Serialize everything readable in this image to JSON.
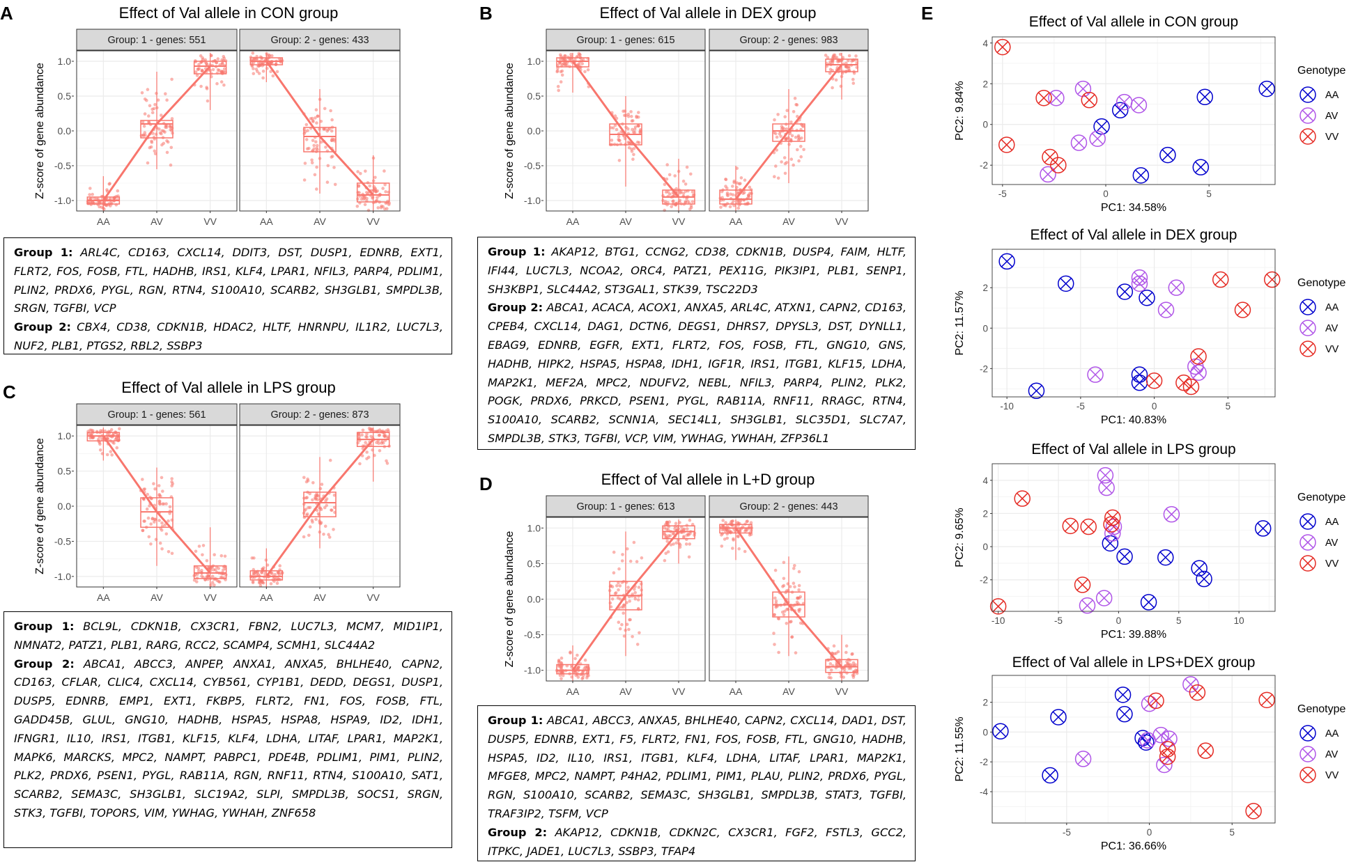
{
  "figure_letters": {
    "A": "A",
    "B": "B",
    "C": "C",
    "D": "D",
    "E": "E"
  },
  "colors": {
    "salmon": "#F8766D",
    "AA": "#0000CD",
    "AV": "#B055E8",
    "VV": "#E52B24",
    "strip": "#D9D9D9",
    "grid": "#EBEBEB"
  },
  "chart_data": [
    {
      "id": "A",
      "type": "box",
      "title": "Effect of Val allele in CON group",
      "ylabel": "Z-score of gene abundance",
      "ylim": [
        -1.15,
        1.15
      ],
      "yticks": [
        "1.0",
        "0.5",
        "0.0",
        "-0.5",
        "-1.0"
      ],
      "panels": [
        {
          "strip": "Group:  1 - genes: 551",
          "categories": [
            "AA",
            "AV",
            "VV"
          ],
          "medians": [
            -1.0,
            0.1,
            0.93
          ],
          "q1": [
            -1.05,
            -0.1,
            0.82
          ],
          "q3": [
            -0.95,
            0.15,
            1.0
          ],
          "whisker_low": [
            -1.15,
            -0.55,
            0.3
          ],
          "whisker_high": [
            -0.65,
            0.85,
            1.12
          ]
        },
        {
          "strip": "Group:  2 - genes: 433",
          "categories": [
            "AA",
            "AV",
            "VV"
          ],
          "medians": [
            1.0,
            -0.08,
            -0.92
          ],
          "q1": [
            0.95,
            -0.3,
            -1.02
          ],
          "q3": [
            1.05,
            0.05,
            -0.75
          ],
          "whisker_low": [
            0.7,
            -0.9,
            -1.15
          ],
          "whisker_high": [
            1.12,
            0.6,
            -0.35
          ]
        }
      ]
    },
    {
      "id": "B",
      "type": "box",
      "title": "Effect of Val allele in DEX group",
      "ylabel": "Z-score of gene abundance",
      "ylim": [
        -1.15,
        1.15
      ],
      "yticks": [
        "1.0",
        "0.5",
        "0.0",
        "-0.5",
        "-1.0"
      ],
      "panels": [
        {
          "strip": "Group:  1 - genes: 615",
          "categories": [
            "AA",
            "AV",
            "VV"
          ],
          "medians": [
            1.0,
            -0.05,
            -0.95
          ],
          "q1": [
            0.92,
            -0.2,
            -1.05
          ],
          "q3": [
            1.05,
            0.1,
            -0.85
          ],
          "whisker_low": [
            0.55,
            -0.8,
            -1.15
          ],
          "whisker_high": [
            1.12,
            0.5,
            -0.4
          ]
        },
        {
          "strip": "Group:  2 - genes: 983",
          "categories": [
            "AA",
            "AV",
            "VV"
          ],
          "medians": [
            -0.98,
            0.0,
            0.95
          ],
          "q1": [
            -1.05,
            -0.15,
            0.85
          ],
          "q3": [
            -0.85,
            0.1,
            1.03
          ],
          "whisker_low": [
            -1.15,
            -0.75,
            0.45
          ],
          "whisker_high": [
            -0.5,
            0.6,
            1.12
          ]
        }
      ]
    },
    {
      "id": "C",
      "type": "box",
      "title": "Effect of Val allele in LPS group",
      "ylabel": "Z-score of gene abundance",
      "ylim": [
        -1.15,
        1.15
      ],
      "yticks": [
        "1.0",
        "0.5",
        "0.0",
        "-0.5",
        "-1.0"
      ],
      "panels": [
        {
          "strip": "Group:  1 - genes: 561",
          "categories": [
            "AA",
            "AV",
            "VV"
          ],
          "medians": [
            1.0,
            -0.08,
            -0.95
          ],
          "q1": [
            0.93,
            -0.3,
            -1.03
          ],
          "q3": [
            1.05,
            0.12,
            -0.85
          ],
          "whisker_low": [
            0.65,
            -0.85,
            -1.15
          ],
          "whisker_high": [
            1.12,
            0.55,
            -0.3
          ]
        },
        {
          "strip": "Group:  2 - genes: 873",
          "categories": [
            "AA",
            "AV",
            "VV"
          ],
          "medians": [
            -1.0,
            0.05,
            0.95
          ],
          "q1": [
            -1.05,
            -0.15,
            0.85
          ],
          "q3": [
            -0.92,
            0.2,
            1.05
          ],
          "whisker_low": [
            -1.15,
            -0.6,
            0.35
          ],
          "whisker_high": [
            -0.6,
            0.7,
            1.12
          ]
        }
      ]
    },
    {
      "id": "D",
      "type": "box",
      "title": "Effect of Val allele in L+D group",
      "ylabel": "Z-score of gene abundance",
      "ylim": [
        -1.15,
        1.15
      ],
      "yticks": [
        "1.0",
        "0.5",
        "0.0",
        "-0.5",
        "-1.0"
      ],
      "panels": [
        {
          "strip": "Group:  1 - genes: 613",
          "categories": [
            "AA",
            "AV",
            "VV"
          ],
          "medians": [
            -1.0,
            0.05,
            0.95
          ],
          "q1": [
            -1.05,
            -0.15,
            0.85
          ],
          "q3": [
            -0.92,
            0.25,
            1.03
          ],
          "whisker_low": [
            -1.15,
            -0.8,
            0.5
          ],
          "whisker_high": [
            -0.65,
            0.95,
            1.12
          ]
        },
        {
          "strip": "Group:  2 - genes: 443",
          "categories": [
            "AA",
            "AV",
            "VV"
          ],
          "medians": [
            1.0,
            -0.08,
            -0.95
          ],
          "q1": [
            0.93,
            -0.25,
            -1.03
          ],
          "q3": [
            1.05,
            0.1,
            -0.85
          ],
          "whisker_low": [
            0.55,
            -0.8,
            -1.15
          ],
          "whisker_high": [
            1.12,
            0.6,
            -0.5
          ]
        }
      ]
    },
    {
      "id": "E1",
      "type": "scatter",
      "title": "Effect of Val allele in CON group",
      "xlabel": "PC1: 34.58%",
      "ylabel": "PC2: 9.84%",
      "xlim": [
        -5.5,
        8.2
      ],
      "ylim": [
        -2.95,
        4.3
      ],
      "xticks": [
        -5,
        0,
        5
      ],
      "yticks": [
        4,
        2,
        0,
        -2
      ],
      "legend_title": "Genotype",
      "legend": [
        "AA",
        "AV",
        "VV"
      ],
      "points": [
        {
          "g": "AA",
          "x": 4.8,
          "y": 1.35
        },
        {
          "g": "AA",
          "x": 7.8,
          "y": 1.75
        },
        {
          "g": "AA",
          "x": 0.7,
          "y": 0.7
        },
        {
          "g": "AA",
          "x": -0.2,
          "y": -0.1
        },
        {
          "g": "AA",
          "x": 1.7,
          "y": -2.5
        },
        {
          "g": "AA",
          "x": 3.0,
          "y": -1.5
        },
        {
          "g": "AA",
          "x": 4.6,
          "y": -2.1
        },
        {
          "g": "AV",
          "x": -1.1,
          "y": 1.75
        },
        {
          "g": "AV",
          "x": -2.4,
          "y": 1.3
        },
        {
          "g": "AV",
          "x": 0.9,
          "y": 1.1
        },
        {
          "g": "AV",
          "x": 1.6,
          "y": 0.95
        },
        {
          "g": "AV",
          "x": -1.3,
          "y": -0.9
        },
        {
          "g": "AV",
          "x": -0.4,
          "y": -0.7
        },
        {
          "g": "AV",
          "x": -2.8,
          "y": -2.45
        },
        {
          "g": "VV",
          "x": -5.0,
          "y": 3.8
        },
        {
          "g": "VV",
          "x": -3.0,
          "y": 1.3
        },
        {
          "g": "VV",
          "x": -0.8,
          "y": 1.2
        },
        {
          "g": "VV",
          "x": -4.8,
          "y": -1.0
        },
        {
          "g": "VV",
          "x": -2.7,
          "y": -1.6
        },
        {
          "g": "VV",
          "x": -2.3,
          "y": -2.0
        }
      ]
    },
    {
      "id": "E2",
      "type": "scatter",
      "title": "Effect of Val allele in DEX group",
      "xlabel": "PC1: 40.83%",
      "ylabel": "PC2: 11.57%",
      "xlim": [
        -11,
        8.2
      ],
      "ylim": [
        -3.4,
        3.9
      ],
      "xticks": [
        -10,
        -5,
        0,
        5
      ],
      "yticks": [
        2,
        0,
        -2
      ],
      "legend_title": "Genotype",
      "legend": [
        "AA",
        "AV",
        "VV"
      ],
      "points": [
        {
          "g": "AA",
          "x": -10,
          "y": 3.3
        },
        {
          "g": "AA",
          "x": -6,
          "y": 2.2
        },
        {
          "g": "AA",
          "x": -2,
          "y": 1.8
        },
        {
          "g": "AA",
          "x": -0.5,
          "y": 1.5
        },
        {
          "g": "AA",
          "x": -8,
          "y": -3.1
        },
        {
          "g": "AA",
          "x": -1,
          "y": -2.3
        },
        {
          "g": "AA",
          "x": -1,
          "y": -2.7
        },
        {
          "g": "AV",
          "x": -1,
          "y": 2.5
        },
        {
          "g": "AV",
          "x": -1,
          "y": 2.2
        },
        {
          "g": "AV",
          "x": 1.5,
          "y": 2.0
        },
        {
          "g": "AV",
          "x": 0.8,
          "y": 0.9
        },
        {
          "g": "AV",
          "x": -4,
          "y": -2.3
        },
        {
          "g": "AV",
          "x": 3,
          "y": -2.2
        },
        {
          "g": "AV",
          "x": 2.8,
          "y": -1.9
        },
        {
          "g": "VV",
          "x": 4.5,
          "y": 2.4
        },
        {
          "g": "VV",
          "x": 8,
          "y": 2.4
        },
        {
          "g": "VV",
          "x": 6,
          "y": 0.9
        },
        {
          "g": "VV",
          "x": 3,
          "y": -1.4
        },
        {
          "g": "VV",
          "x": 0,
          "y": -2.6
        },
        {
          "g": "VV",
          "x": 2,
          "y": -2.7
        },
        {
          "g": "VV",
          "x": 2.5,
          "y": -2.9
        }
      ]
    },
    {
      "id": "E3",
      "type": "scatter",
      "title": "Effect of Val allele in LPS group",
      "xlabel": "PC1: 39.88%",
      "ylabel": "PC2: 9.65%",
      "xlim": [
        -10.5,
        13
      ],
      "ylim": [
        -3.9,
        5.0
      ],
      "xticks": [
        -10,
        -5,
        0,
        5,
        10
      ],
      "yticks": [
        4,
        2,
        0,
        -2
      ],
      "legend_title": "Genotype",
      "legend": [
        "AA",
        "AV",
        "VV"
      ],
      "points": [
        {
          "g": "AA",
          "x": 12,
          "y": 1.1
        },
        {
          "g": "AA",
          "x": -0.7,
          "y": 0.2
        },
        {
          "g": "AA",
          "x": 0.5,
          "y": -0.6
        },
        {
          "g": "AA",
          "x": 3.9,
          "y": -0.65
        },
        {
          "g": "AA",
          "x": 6.7,
          "y": -1.3
        },
        {
          "g": "AA",
          "x": 7.1,
          "y": -1.95
        },
        {
          "g": "AA",
          "x": 2.5,
          "y": -3.35
        },
        {
          "g": "AV",
          "x": -1.1,
          "y": 4.3
        },
        {
          "g": "AV",
          "x": -1.0,
          "y": 3.55
        },
        {
          "g": "AV",
          "x": 4.4,
          "y": 1.95
        },
        {
          "g": "AV",
          "x": -0.4,
          "y": 1.2
        },
        {
          "g": "AV",
          "x": -0.5,
          "y": 0.8
        },
        {
          "g": "AV",
          "x": -1.2,
          "y": -3.1
        },
        {
          "g": "AV",
          "x": -2.6,
          "y": -3.55
        },
        {
          "g": "VV",
          "x": -8.0,
          "y": 2.9
        },
        {
          "g": "VV",
          "x": -4.0,
          "y": 1.25
        },
        {
          "g": "VV",
          "x": -2.5,
          "y": 1.2
        },
        {
          "g": "VV",
          "x": -0.5,
          "y": 1.75
        },
        {
          "g": "VV",
          "x": -0.6,
          "y": 1.35
        },
        {
          "g": "VV",
          "x": -3.0,
          "y": -2.3
        },
        {
          "g": "VV",
          "x": -10,
          "y": -3.6
        }
      ]
    },
    {
      "id": "E4",
      "type": "scatter",
      "title": "Effect of Val allele in LPS+DEX group",
      "xlabel": "PC1: 36.66%",
      "ylabel": "PC2: 11.55%",
      "xlim": [
        -9.5,
        7.6
      ],
      "ylim": [
        -6.1,
        3.8
      ],
      "xticks": [
        -5,
        0,
        5
      ],
      "yticks": [
        2,
        0,
        -2,
        -4
      ],
      "legend_title": "Genotype",
      "legend": [
        "AA",
        "AV",
        "VV"
      ],
      "points": [
        {
          "g": "AA",
          "x": -9,
          "y": 0.05
        },
        {
          "g": "AA",
          "x": -6,
          "y": -2.9
        },
        {
          "g": "AA",
          "x": -5.5,
          "y": 1.0
        },
        {
          "g": "AA",
          "x": -1.6,
          "y": 2.5
        },
        {
          "g": "AA",
          "x": -1.5,
          "y": 1.2
        },
        {
          "g": "AA",
          "x": -0.4,
          "y": -0.4
        },
        {
          "g": "AA",
          "x": -0.2,
          "y": -0.7
        },
        {
          "g": "AV",
          "x": -4,
          "y": -1.8
        },
        {
          "g": "AV",
          "x": 0,
          "y": 1.9
        },
        {
          "g": "AV",
          "x": 0.7,
          "y": -0.2
        },
        {
          "g": "AV",
          "x": 1.2,
          "y": -0.45
        },
        {
          "g": "AV",
          "x": 0.9,
          "y": -2.2
        },
        {
          "g": "AV",
          "x": 2.5,
          "y": 3.2
        },
        {
          "g": "AV",
          "x": -0.1,
          "y": -0.55
        },
        {
          "g": "VV",
          "x": 0.4,
          "y": 2.1
        },
        {
          "g": "VV",
          "x": 2.9,
          "y": 2.65
        },
        {
          "g": "VV",
          "x": 7.1,
          "y": 2.15
        },
        {
          "g": "VV",
          "x": 1.1,
          "y": -1.15
        },
        {
          "g": "VV",
          "x": 1.1,
          "y": -1.65
        },
        {
          "g": "VV",
          "x": 3.4,
          "y": -1.25
        },
        {
          "g": "VV",
          "x": 6.3,
          "y": -5.3
        }
      ]
    }
  ],
  "gene_lists": {
    "A": {
      "g1_label": "Group 1:",
      "g1": "ARL4C, CD163, CXCL14, DDIT3, DST, DUSP1, EDNRB, EXT1, FLRT2, FOS, FOSB, FTL, HADHB, IRS1, KLF4, LPAR1, NFIL3, PARP4, PDLIM1, PLIN2, PRDX6, PYGL, RGN, RTN4, S100A10, SCARB2, SH3GLB1, SMPDL3B, SRGN, TGFBI, VCP",
      "g2_label": "Group 2:",
      "g2": "CBX4, CD38, CDKN1B, HDAC2, HLTF, HNRNPU, IL1R2, LUC7L3, NUF2, PLB1, PTGS2, RBL2, SSBP3"
    },
    "B": {
      "g1_label": "Group 1:",
      "g1": "AKAP12, BTG1, CCNG2, CD38, CDKN1B, DUSP4, FAIM, HLTF, IFI44, LUC7L3, NCOA2, ORC4, PATZ1, PEX11G, PIK3IP1, PLB1, SENP1, SH3KBP1, SLC44A2, ST3GAL1, STK39, TSC22D3",
      "g2_label": "Group 2:",
      "g2": "ABCA1, ACACA, ACOX1, ANXA5, ARL4C, ATXN1, CAPN2, CD163, CPEB4, CXCL14, DAG1, DCTN6, DEGS1, DHRS7, DPYSL3, DST, DYNLL1, EBAG9, EDNRB, EGFR, EXT1, FLRT2, FOS, FOSB, FTL, GNG10, GNS, HADHB, HIPK2, HSPA5, HSPA8, IDH1, IGF1R, IRS1, ITGB1, KLF15, LDHA, MAP2K1, MEF2A, MPC2, NDUFV2, NEBL, NFIL3, PARP4, PLIN2, PLK2, POGK, PRDX6, PRKCD, PSEN1, PYGL, RAB11A, RNF11, RRAGC, RTN4, S100A10, SCARB2, SCNN1A, SEC14L1, SH3GLB1, SLC35D1, SLC7A7, SMPDL3B, STK3, TGFBI, VCP, VIM, YWHAG, YWHAH, ZFP36L1"
    },
    "C": {
      "g1_label": "Group 1:",
      "g1": "BCL9L, CDKN1B, CX3CR1, FBN2, LUC7L3, MCM7, MID1IP1, NMNAT2, PATZ1, PLB1, RARG, RCC2, SCAMP4, SCMH1, SLC44A2",
      "g2_label": "Group 2:",
      "g2": "ABCA1, ABCC3, ANPEP, ANXA1, ANXA5, BHLHE40, CAPN2, CD163, CFLAR, CLIC4, CXCL14, CYB561, CYP1B1, DEDD, DEGS1, DUSP1, DUSP5, EDNRB, EMP1, EXT1, FKBP5, FLRT2, FN1, FOS, FOSB, FTL, GADD45B, GLUL, GNG10, HADHB, HSPA5, HSPA8, HSPA9, ID2, IDH1, IFNGR1, IL10, IRS1, ITGB1, KLF15, KLF4, LDHA, LITAF, LPAR1, MAP2K1, MAPK6, MARCKS, MPC2, NAMPT, PABPC1, PDE4B, PDLIM1, PIM1, PLIN2, PLK2, PRDX6, PSEN1, PYGL, RAB11A, RGN, RNF11, RTN4, S100A10, SAT1, SCARB2, SEMA3C, SH3GLB1, SLC19A2, SLPI, SMPDL3B, SOCS1, SRGN, STK3, TGFBI, TOPORS, VIM, YWHAG, YWHAH, ZNF658"
    },
    "D": {
      "g1_label": "Group 1:",
      "g1": "ABCA1, ABCC3, ANXA5, BHLHE40, CAPN2, CXCL14, DAD1, DST, DUSP5, EDNRB, EXT1, F5, FLRT2, FN1, FOS, FOSB, FTL, GNG10, HADHB, HSPA5, ID2, IL10, IRS1, ITGB1, KLF4, LDHA, LITAF, LPAR1, MAP2K1, MFGE8, MPC2, NAMPT, P4HA2, PDLIM1, PIM1, PLAU, PLIN2, PRDX6, PYGL, RGN, S100A10, SCARB2, SEMA3C, SH3GLB1, SMPDL3B, STAT3, TGFBI, TRAF3IP2, TSFM, VCP",
      "g2_label": "Group 2:",
      "g2": "AKAP12, CDKN1B, CDKN2C, CX3CR1, FGF2, FSTL3, GCC2, ITPKC, JADE1, LUC7L3, SSBP3, TFAP4"
    }
  }
}
